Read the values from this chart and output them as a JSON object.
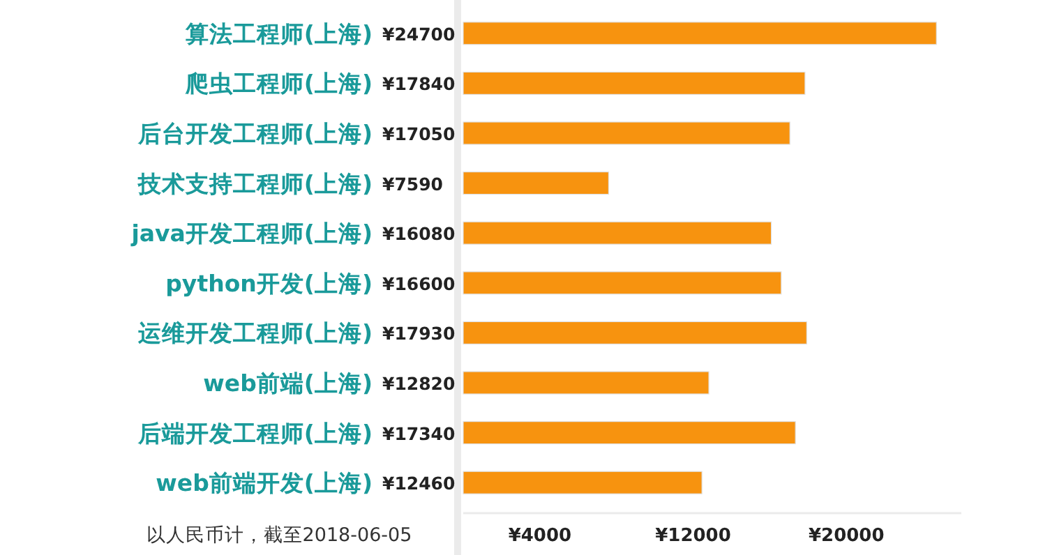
{
  "chart_data": {
    "type": "bar",
    "orientation": "horizontal",
    "categories": [
      "算法工程师(上海)",
      "爬虫工程师(上海)",
      "后台开发工程师(上海)",
      "技术支持工程师(上海)",
      "java开发工程师(上海)",
      "python开发(上海)",
      "运维开发工程师(上海)",
      "web前端(上海)",
      "后端开发工程师(上海)",
      "web前端开发(上海)"
    ],
    "values": [
      24700,
      17840,
      17050,
      7590,
      16080,
      16600,
      17930,
      12820,
      17340,
      12460
    ],
    "value_labels": [
      "¥24700",
      "¥17840",
      "¥17050",
      "¥7590",
      "¥16080",
      "¥16600",
      "¥17930",
      "¥12820",
      "¥17340",
      "¥12460"
    ],
    "color": "#f7930f",
    "xlim": [
      0,
      26000
    ],
    "xticks": [
      {
        "value": 4000,
        "label": "¥4000"
      },
      {
        "value": 12000,
        "label": "¥12000"
      },
      {
        "value": 20000,
        "label": "¥20000"
      }
    ],
    "annotations": [
      "以人民币计，截至2018-06-05"
    ]
  }
}
